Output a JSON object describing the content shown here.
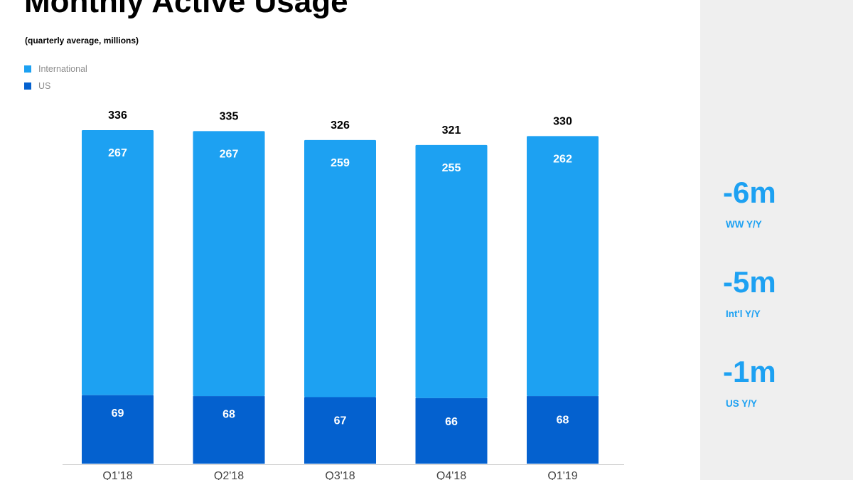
{
  "chart_data": {
    "type": "bar",
    "stacked": true,
    "title": "Monthly Active Usage",
    "subtitle": "(quarterly average, millions)",
    "categories": [
      "Q1'18",
      "Q2'18",
      "Q3'18",
      "Q4'18",
      "Q1'19"
    ],
    "totals": [
      336,
      335,
      326,
      321,
      330
    ],
    "series": [
      {
        "name": "US",
        "values": [
          69,
          68,
          67,
          66,
          68
        ],
        "color": "#0461cf"
      },
      {
        "name": "International",
        "values": [
          267,
          267,
          259,
          255,
          262
        ],
        "color": "#1da1f2"
      }
    ],
    "legend": {
      "placement": "top-left",
      "order": [
        "International",
        "US"
      ]
    },
    "grid": false,
    "value_labels": true
  },
  "colors": {
    "background": "#ffffff",
    "side_panel": "#efefef",
    "accent": "#1da1f2",
    "us": "#0461cf"
  },
  "stats": [
    {
      "value": "-6m",
      "label": "WW Y/Y"
    },
    {
      "value": "-5m",
      "label": "Int'l Y/Y"
    },
    {
      "value": "-1m",
      "label": "US Y/Y"
    }
  ]
}
